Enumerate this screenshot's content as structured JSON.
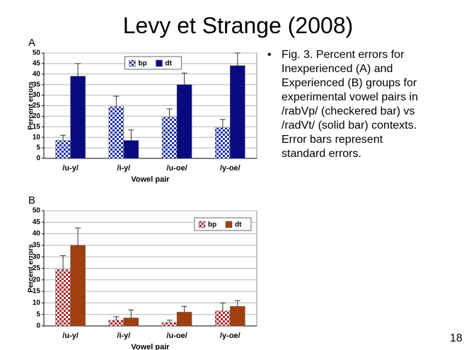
{
  "slide_title": "Levy et Strange (2008)",
  "caption_lines": [
    "Fig. 3. Percent errors for",
    "Inexperienced (A) and",
    "Experienced (B) groups for",
    "experimental vowel pairs in",
    "/rabVp/ (checkered bar) vs",
    "/radVt/ (solid bar) contexts.",
    "Error bars represent",
    "standard errors."
  ],
  "page_number": "18",
  "chart_data": [
    {
      "type": "bar",
      "title": "A",
      "xlabel": "Vowel pair",
      "ylabel": "Percent errors",
      "categories": [
        "/u-y/",
        "/i-y/",
        "/u-oe/",
        "/y-oe/"
      ],
      "series": [
        {
          "name": "bp",
          "color": "#1f2fa8",
          "fill_style": "checkered",
          "values": [
            8.5,
            24.5,
            19.5,
            14.5
          ],
          "errors": [
            2.5,
            5,
            4,
            4
          ]
        },
        {
          "name": "dt",
          "color": "#0a0a80",
          "fill_style": "solid",
          "values": [
            39,
            8.5,
            35,
            44
          ],
          "errors": [
            6,
            5,
            5.5,
            6
          ]
        }
      ],
      "ylim": [
        0,
        50
      ],
      "yticks": [
        0,
        5,
        10,
        15,
        20,
        25,
        30,
        35,
        40,
        45,
        50
      ],
      "grid": true,
      "legend": "top-center"
    },
    {
      "type": "bar",
      "title": "B",
      "xlabel": "Vowel pair",
      "ylabel": "Percent errors",
      "categories": [
        "/u-y/",
        "/i-y/",
        "/u-oe/",
        "/y-oe/"
      ],
      "series": [
        {
          "name": "bp",
          "color": "#b02828",
          "fill_style": "checkered",
          "values": [
            24.5,
            2.5,
            1.5,
            6.5
          ],
          "errors": [
            6,
            1.5,
            1,
            3.5
          ]
        },
        {
          "name": "dt",
          "color": "#a0400f",
          "fill_style": "solid",
          "values": [
            35,
            3.5,
            6,
            8.5
          ],
          "errors": [
            7.5,
            3.5,
            2.5,
            2.5
          ]
        }
      ],
      "ylim": [
        0,
        50
      ],
      "yticks": [
        0,
        5,
        10,
        15,
        20,
        25,
        30,
        35,
        40,
        45,
        50
      ],
      "grid": true,
      "legend": "top-right"
    }
  ]
}
